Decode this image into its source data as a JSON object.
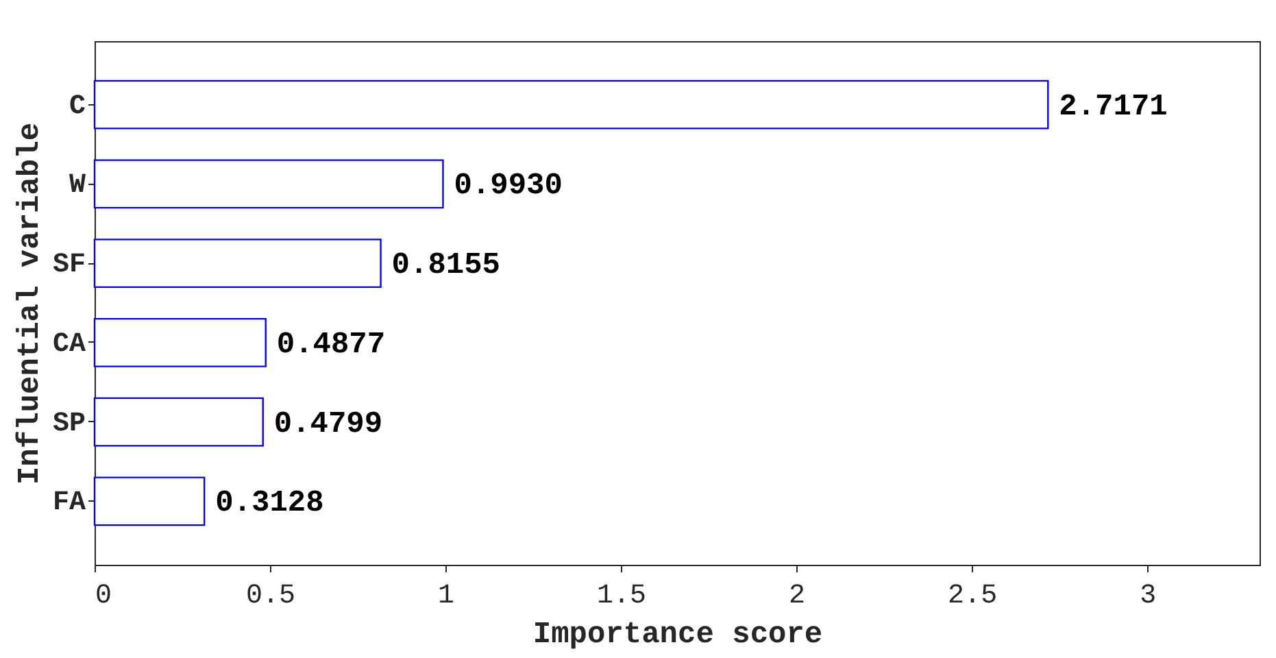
{
  "chart_data": {
    "type": "bar",
    "orientation": "horizontal",
    "xlabel": "Importance score",
    "ylabel": "Influential variable",
    "categories": [
      "C",
      "W",
      "SF",
      "CA",
      "SP",
      "FA"
    ],
    "values": [
      2.7171,
      0.993,
      0.8155,
      0.4877,
      0.4799,
      0.3128
    ],
    "value_labels": [
      "2.7171",
      "0.9930",
      "0.8155",
      "0.4877",
      "0.4799",
      "0.3128"
    ],
    "color": "#0000ff",
    "xlim": [
      0,
      3.32
    ],
    "xticks": [
      0,
      0.5,
      1,
      1.5,
      2,
      2.5,
      3
    ],
    "grid": false
  }
}
